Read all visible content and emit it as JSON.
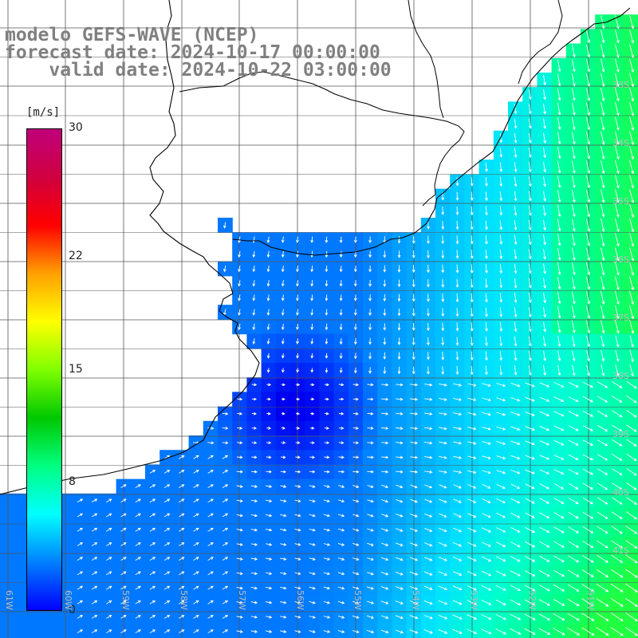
{
  "header": {
    "line1": "modelo GEFS-WAVE (NCEP)",
    "line2": "forecast date: 2024-10-17 00:00:00",
    "line3": "    valid date: 2024-10-22 03:00:00"
  },
  "colorbar": {
    "unit": "[m/s]",
    "ticks": [
      {
        "label": "30",
        "value": 30
      },
      {
        "label": "22",
        "value": 22
      },
      {
        "label": "15",
        "value": 15
      },
      {
        "label": "8",
        "value": 8
      },
      {
        "label": "0",
        "value": 0
      }
    ],
    "colors": [
      "#0000ff",
      "#0080ff",
      "#00ffff",
      "#00ff80",
      "#00c800",
      "#80ff00",
      "#ffff00",
      "#ffa000",
      "#ff0000",
      "#d00040",
      "#c0007a"
    ]
  },
  "lat_labels": [
    "33S",
    "34S",
    "35S",
    "36S",
    "37S",
    "38S",
    "39S",
    "40S",
    "41S"
  ],
  "lon_labels": [
    "61W",
    "60W",
    "59W",
    "58W",
    "57W",
    "56W",
    "55W",
    "54W",
    "53W",
    "52W",
    "51W"
  ],
  "colors": {
    "land": "#ffffff",
    "grid": "#555555",
    "coast": "#000000",
    "arrow": "#ffffff",
    "header": "#808080"
  }
}
